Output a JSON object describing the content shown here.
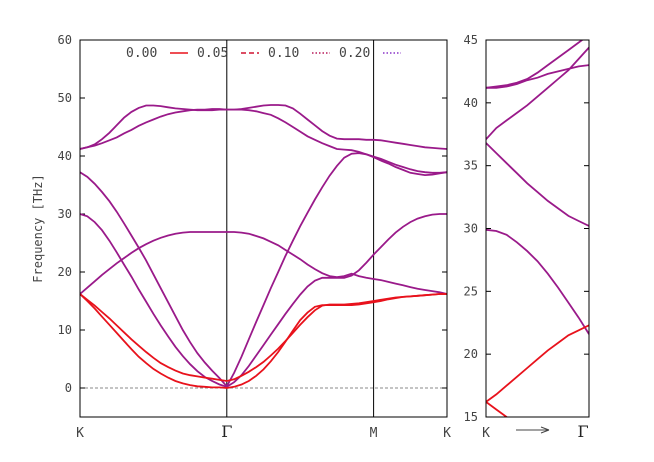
{
  "chart_data": [
    {
      "type": "line",
      "ylabel": "Frequency [THz]",
      "ylim": [
        -5,
        60
      ],
      "yticks": [
        0,
        10,
        20,
        30,
        40,
        50,
        60
      ],
      "xticks": [
        "K",
        "Γ",
        "M",
        "K"
      ],
      "zero_line": true,
      "legend": {
        "placement": "top",
        "entries": [
          {
            "name": "0.00",
            "color": "#e8121c",
            "dash": "solid"
          },
          {
            "name": "0.05",
            "color": "#d01430",
            "dash": "dashed"
          },
          {
            "name": "0.10",
            "color": "#b81a5a",
            "dash": "dotted"
          },
          {
            "name": "0.20",
            "color": "#8a34c8",
            "dash": "dotted"
          }
        ]
      },
      "x": [
        0,
        0.05,
        0.1,
        0.15,
        0.2,
        0.25,
        0.3,
        0.35,
        0.4,
        0.45,
        0.5,
        0.55,
        0.6,
        0.65,
        0.7,
        0.75,
        0.8,
        0.85,
        0.9,
        0.95,
        1.0,
        1.05,
        1.1,
        1.15,
        1.2,
        1.25,
        1.3,
        1.35,
        1.4,
        1.45,
        1.5,
        1.55,
        1.6,
        1.65,
        1.7,
        1.75,
        1.8,
        1.85,
        1.9,
        1.95,
        2.0,
        2.05,
        2.1,
        2.15,
        2.2,
        2.25,
        2.3,
        2.35,
        2.4,
        2.45,
        2.5
      ],
      "segments": {
        "K_Gamma": [
          0,
          1
        ],
        "Gamma_M": [
          1,
          2
        ],
        "M_K": [
          2,
          2.5
        ]
      },
      "series": [
        {
          "values": [
            41.2,
            41.5,
            42,
            42.9,
            44,
            45.3,
            46.6,
            47.6,
            48.3,
            48.7,
            48.7,
            48.6,
            48.4,
            48.2,
            48.1,
            48,
            47.9,
            47.9,
            47.9,
            48,
            48,
            48,
            48.1,
            48.3,
            48.5,
            48.7,
            48.8,
            48.8,
            48.7,
            48.2,
            47.3,
            46.3,
            45.3,
            44.3,
            43.5,
            43,
            42.9,
            42.9,
            42.9,
            42.8,
            42.8,
            42.7,
            42.5,
            42.3,
            42.1,
            41.9,
            41.7,
            41.5,
            41.4,
            41.3,
            41.2
          ]
        },
        {
          "values": [
            41.2,
            41.5,
            41.8,
            42.2,
            42.7,
            43.2,
            43.9,
            44.5,
            45.2,
            45.8,
            46.3,
            46.8,
            47.2,
            47.5,
            47.7,
            47.9,
            48,
            48,
            48.1,
            48.1,
            48,
            48,
            48,
            47.9,
            47.7,
            47.4,
            47.1,
            46.5,
            45.8,
            45,
            44.2,
            43.4,
            42.8,
            42.2,
            41.7,
            41.2,
            41.1,
            41,
            40.7,
            40.3,
            39.8,
            39.2,
            38.7,
            38.1,
            37.6,
            37.1,
            36.9,
            36.7,
            36.8,
            37,
            37.2
          ]
        },
        {
          "values": [
            37.2,
            36.4,
            35.2,
            33.8,
            32.2,
            30.4,
            28.4,
            26.3,
            24.2,
            22,
            19.6,
            17.2,
            14.8,
            12.4,
            10,
            7.9,
            6,
            4.4,
            3,
            1.7,
            0.3,
            2.6,
            5.4,
            8.4,
            11.4,
            14.3,
            17.2,
            20,
            22.8,
            25.4,
            27.9,
            30.2,
            32.5,
            34.6,
            36.6,
            38.3,
            39.7,
            40.4,
            40.5,
            40.3,
            39.9,
            39.5,
            39,
            38.5,
            38.1,
            37.7,
            37.4,
            37.2,
            37.1,
            37.1,
            37.2
          ]
        },
        {
          "values": [
            30,
            29.6,
            28.6,
            27.2,
            25.4,
            23.4,
            21.3,
            19.2,
            17,
            14.9,
            12.8,
            10.8,
            8.9,
            7.1,
            5.5,
            4.1,
            2.9,
            1.9,
            1.2,
            0.6,
            0.2,
            1,
            2.2,
            3.8,
            5.6,
            7.4,
            9.2,
            11,
            12.8,
            14.5,
            16.1,
            17.5,
            18.5,
            19,
            19,
            19,
            19,
            19.4,
            20.3,
            21.6,
            23,
            24.3,
            25.6,
            26.8,
            27.8,
            28.6,
            29.2,
            29.6,
            29.9,
            30,
            30
          ]
        },
        {
          "values": [
            16.2,
            17.3,
            18.4,
            19.5,
            20.5,
            21.5,
            22.4,
            23.3,
            24.1,
            24.8,
            25.4,
            25.9,
            26.3,
            26.6,
            26.8,
            26.9,
            26.9,
            26.9,
            26.9,
            26.9,
            26.9,
            26.9,
            26.8,
            26.6,
            26.2,
            25.8,
            25.2,
            24.6,
            23.8,
            23,
            22.2,
            21.3,
            20.5,
            19.8,
            19.3,
            19.1,
            19.3,
            19.7,
            19.3,
            19,
            18.8,
            18.6,
            18.3,
            18,
            17.7,
            17.4,
            17.1,
            16.9,
            16.7,
            16.5,
            16.2
          ]
        },
        {
          "values": [
            16.2,
            15.2,
            14.2,
            13.1,
            12,
            10.8,
            9.6,
            8.4,
            7.3,
            6.2,
            5.2,
            4.3,
            3.6,
            3,
            2.5,
            2.2,
            2,
            1.8,
            1.6,
            1.4,
            1.2,
            1.5,
            2.1,
            2.8,
            3.6,
            4.5,
            5.6,
            6.8,
            8.1,
            9.5,
            10.9,
            12.2,
            13.4,
            14.2,
            14.4,
            14.4,
            14.4,
            14.5,
            14.6,
            14.8,
            15,
            15.2,
            15.4,
            15.6,
            15.7,
            15.8,
            15.9,
            16,
            16.1,
            16.2,
            16.2
          ]
        },
        {
          "values": [
            16.2,
            15,
            13.7,
            12.3,
            10.9,
            9.5,
            8.1,
            6.7,
            5.4,
            4.3,
            3.3,
            2.5,
            1.8,
            1.2,
            0.8,
            0.5,
            0.3,
            0.2,
            0.1,
            0.1,
            0,
            0.2,
            0.6,
            1.2,
            2.1,
            3.2,
            4.6,
            6.2,
            8,
            9.9,
            11.7,
            13,
            14,
            14.3,
            14.3,
            14.3,
            14.3,
            14.3,
            14.4,
            14.6,
            14.8,
            15,
            15.3,
            15.5,
            15.7,
            15.8,
            15.9,
            16,
            16.1,
            16.2,
            16.2
          ]
        }
      ]
    },
    {
      "type": "line",
      "ylim": [
        15,
        45
      ],
      "yticks": [
        15,
        20,
        25,
        30,
        35,
        40,
        45
      ],
      "xticks": [
        "K",
        "Γ"
      ],
      "arrow": true,
      "x": [
        0,
        0.1,
        0.2,
        0.3,
        0.4,
        0.5,
        0.6,
        0.7,
        0.8,
        0.9,
        1.0
      ],
      "series": [
        {
          "values": [
            41.2,
            41.2,
            41.3,
            41.5,
            41.8,
            42,
            42.3,
            42.5,
            42.7,
            42.9,
            43
          ]
        },
        {
          "values": [
            41.2,
            41.3,
            41.4,
            41.6,
            41.9,
            42.4,
            43,
            43.6,
            44.2,
            44.8,
            45.4
          ]
        },
        {
          "values": [
            37.1,
            38,
            38.6,
            39.2,
            39.8,
            40.5,
            41.2,
            41.9,
            42.6,
            43.5,
            44.4
          ]
        },
        {
          "values": [
            36.8,
            36,
            35.2,
            34.4,
            33.6,
            32.9,
            32.2,
            31.6,
            31,
            30.6,
            30.2
          ]
        },
        {
          "values": [
            29.9,
            29.8,
            29.5,
            28.9,
            28.2,
            27.4,
            26.4,
            25.3,
            24.1,
            22.9,
            21.6
          ]
        },
        {
          "values": [
            16.2,
            16.8,
            17.5,
            18.2,
            18.9,
            19.6,
            20.3,
            20.9,
            21.5,
            21.9,
            22.3
          ]
        },
        {
          "values": [
            16.2,
            15.6,
            15,
            14.4,
            null,
            null,
            null,
            null,
            null,
            null,
            null
          ]
        }
      ]
    }
  ]
}
